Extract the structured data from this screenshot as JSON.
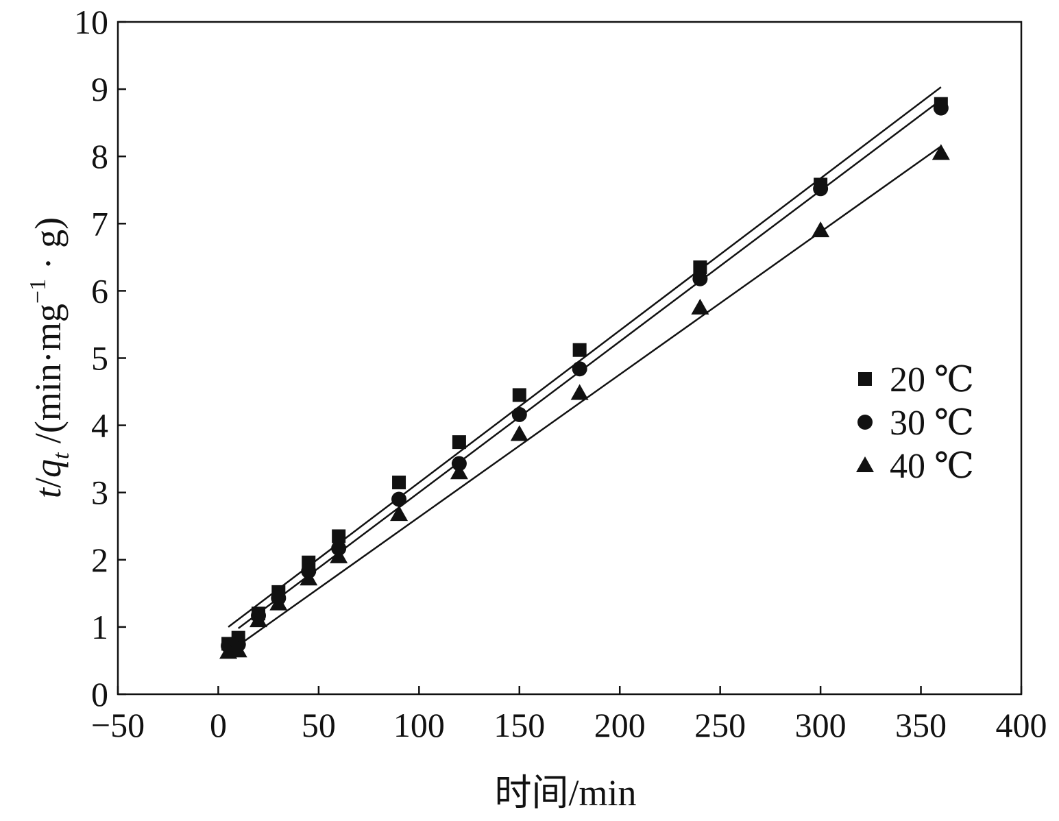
{
  "chart_data": {
    "type": "scatter",
    "title": "",
    "xlabel": "时间/min",
    "ylabel": {
      "t": "t",
      "slash": "/",
      "q": "q",
      "sub": "t",
      "rest": " /(min·mg",
      "sup": "−1",
      "end": " · g)"
    },
    "xlim": [
      -50,
      400
    ],
    "ylim": [
      0,
      10
    ],
    "x_ticks": [
      -50,
      0,
      50,
      100,
      150,
      200,
      250,
      300,
      350,
      400
    ],
    "x_tick_labels": [
      "−50",
      "0",
      "50",
      "100",
      "150",
      "200",
      "250",
      "300",
      "350",
      "400"
    ],
    "y_ticks": [
      0,
      1,
      2,
      3,
      4,
      5,
      6,
      7,
      8,
      9,
      10
    ],
    "y_tick_labels": [
      "0",
      "1",
      "2",
      "3",
      "4",
      "5",
      "6",
      "7",
      "8",
      "9",
      "10"
    ],
    "grid": false,
    "legend_position": "right",
    "series": [
      {
        "name": "20 ℃",
        "marker": "square",
        "x": [
          5,
          10,
          20,
          30,
          45,
          60,
          90,
          120,
          150,
          180,
          240,
          300,
          360
        ],
        "y": [
          0.75,
          0.84,
          1.2,
          1.52,
          1.96,
          2.35,
          3.15,
          3.75,
          4.45,
          5.12,
          6.35,
          7.58,
          8.78
        ],
        "fit": {
          "x": [
            5,
            360
          ],
          "y": [
            1.0,
            9.03
          ]
        }
      },
      {
        "name": "30 ℃",
        "marker": "circle",
        "x": [
          5,
          10,
          20,
          30,
          45,
          60,
          90,
          120,
          150,
          180,
          240,
          300,
          360
        ],
        "y": [
          0.72,
          0.74,
          1.17,
          1.43,
          1.83,
          2.17,
          2.9,
          3.43,
          4.16,
          4.84,
          6.18,
          7.52,
          8.72
        ],
        "fit": {
          "x": [
            10,
            360
          ],
          "y": [
            0.98,
            8.84
          ]
        }
      },
      {
        "name": "40 ℃",
        "marker": "triangle",
        "x": [
          5,
          10,
          20,
          30,
          45,
          60,
          90,
          120,
          150,
          180,
          240,
          300,
          360
        ],
        "y": [
          0.63,
          0.65,
          1.1,
          1.35,
          1.72,
          2.05,
          2.68,
          3.3,
          3.87,
          4.48,
          5.75,
          6.9,
          8.05
        ],
        "fit": {
          "x": [
            5,
            360
          ],
          "y": [
            0.62,
            8.15
          ]
        }
      }
    ],
    "color": "#111111"
  }
}
